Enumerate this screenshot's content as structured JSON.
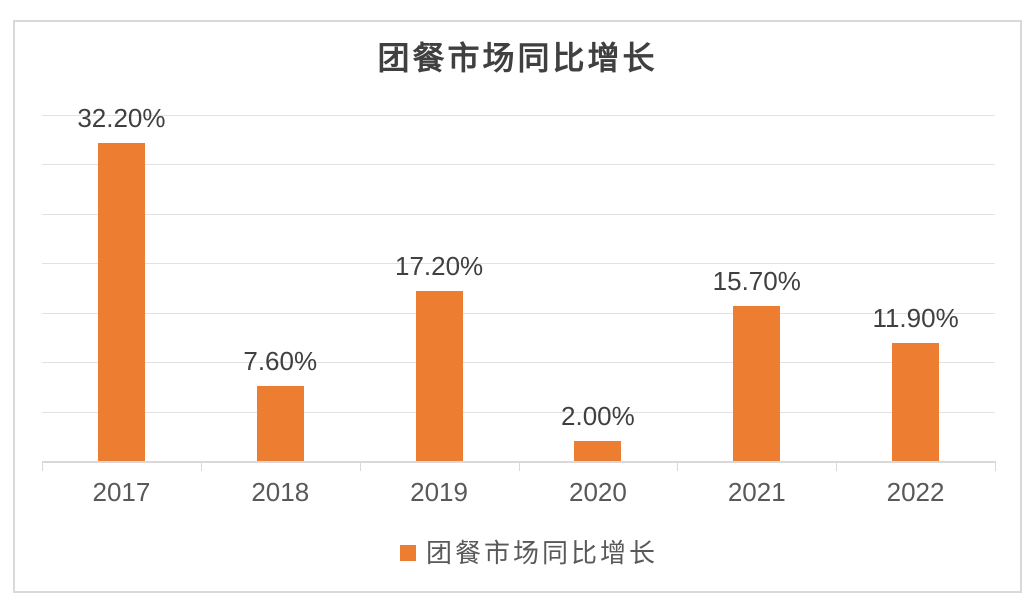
{
  "chart_data": {
    "type": "bar",
    "title": "团餐市场同比增长",
    "categories": [
      "2017",
      "2018",
      "2019",
      "2020",
      "2021",
      "2022"
    ],
    "values": [
      32.2,
      7.6,
      17.2,
      2.0,
      15.7,
      11.9
    ],
    "value_labels": [
      "32.20%",
      "7.60%",
      "17.20%",
      "2.00%",
      "15.70%",
      "11.90%"
    ],
    "series_name": "团餐市场同比增长",
    "xlabel": "",
    "ylabel": "",
    "ylim": [
      0,
      35
    ],
    "gridline_step": 5,
    "grid": "horizontal",
    "legend_position": "bottom",
    "colors": {
      "bar": "#ED7D31",
      "legend_swatch": "#ED7D31",
      "gridline": "#E2E2E2",
      "axis": "#D9D9D9",
      "frame_border": "#D9D9D9",
      "title_text": "#404040",
      "data_label_text": "#404040",
      "axis_label_text": "#595959",
      "background": "#FFFFFF"
    }
  }
}
